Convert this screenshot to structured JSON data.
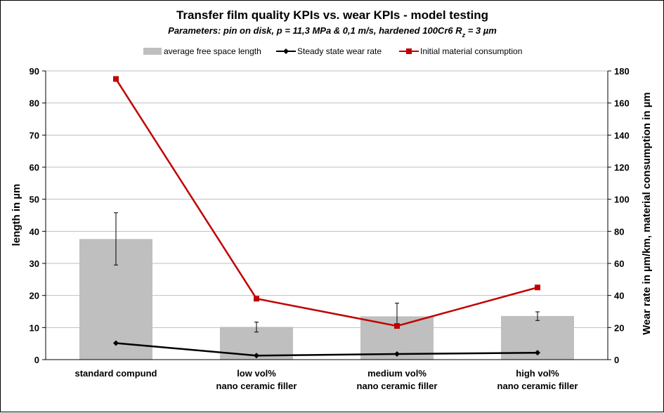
{
  "chart_data": {
    "type": "bar",
    "title": "Transfer film quality KPIs vs. wear KPIs - model testing",
    "subtitle": {
      "prefix": "Parameters: pin on disk, p = 11,3 MPa & 0,1 m/s, hardened 100Cr6 R",
      "sub": "z",
      "suffix": " = 3 µm"
    },
    "categories": [
      [
        "standard compund"
      ],
      [
        "low  vol%",
        "nano ceramic filler"
      ],
      [
        "medium  vol%",
        "nano ceramic filler"
      ],
      [
        "high  vol%",
        "nano ceramic filler"
      ]
    ],
    "ylabel": "length in µm",
    "y2label": "Wear rate in µm/km, material consumption in µm",
    "ylim": [
      0,
      90
    ],
    "yticks": [
      "0",
      "10",
      "20",
      "30",
      "40",
      "50",
      "60",
      "70",
      "80",
      "90"
    ],
    "y2lim": [
      0,
      180
    ],
    "y2ticks": [
      "0",
      "20",
      "40",
      "60",
      "80",
      "100",
      "120",
      "140",
      "160",
      "180"
    ],
    "grid": true,
    "legend_position": "top",
    "series": [
      {
        "name": "average free space length",
        "kind": "bar",
        "axis": "left",
        "color": "#bfbfbf",
        "values": [
          37.6,
          10.2,
          13.5,
          13.6
        ],
        "error_low": [
          29.5,
          8.6,
          10.5,
          12.2
        ],
        "error_high": [
          45.8,
          11.7,
          17.6,
          14.9
        ]
      },
      {
        "name": "Steady state wear rate",
        "kind": "line",
        "axis": "right",
        "color": "#000000",
        "marker": "diamond",
        "values": [
          10.3,
          2.5,
          3.5,
          4.3
        ]
      },
      {
        "name": "Initial material consumption",
        "kind": "line",
        "axis": "right",
        "color": "#c00000",
        "marker": "square",
        "values": [
          175,
          38,
          21,
          45
        ]
      }
    ]
  }
}
